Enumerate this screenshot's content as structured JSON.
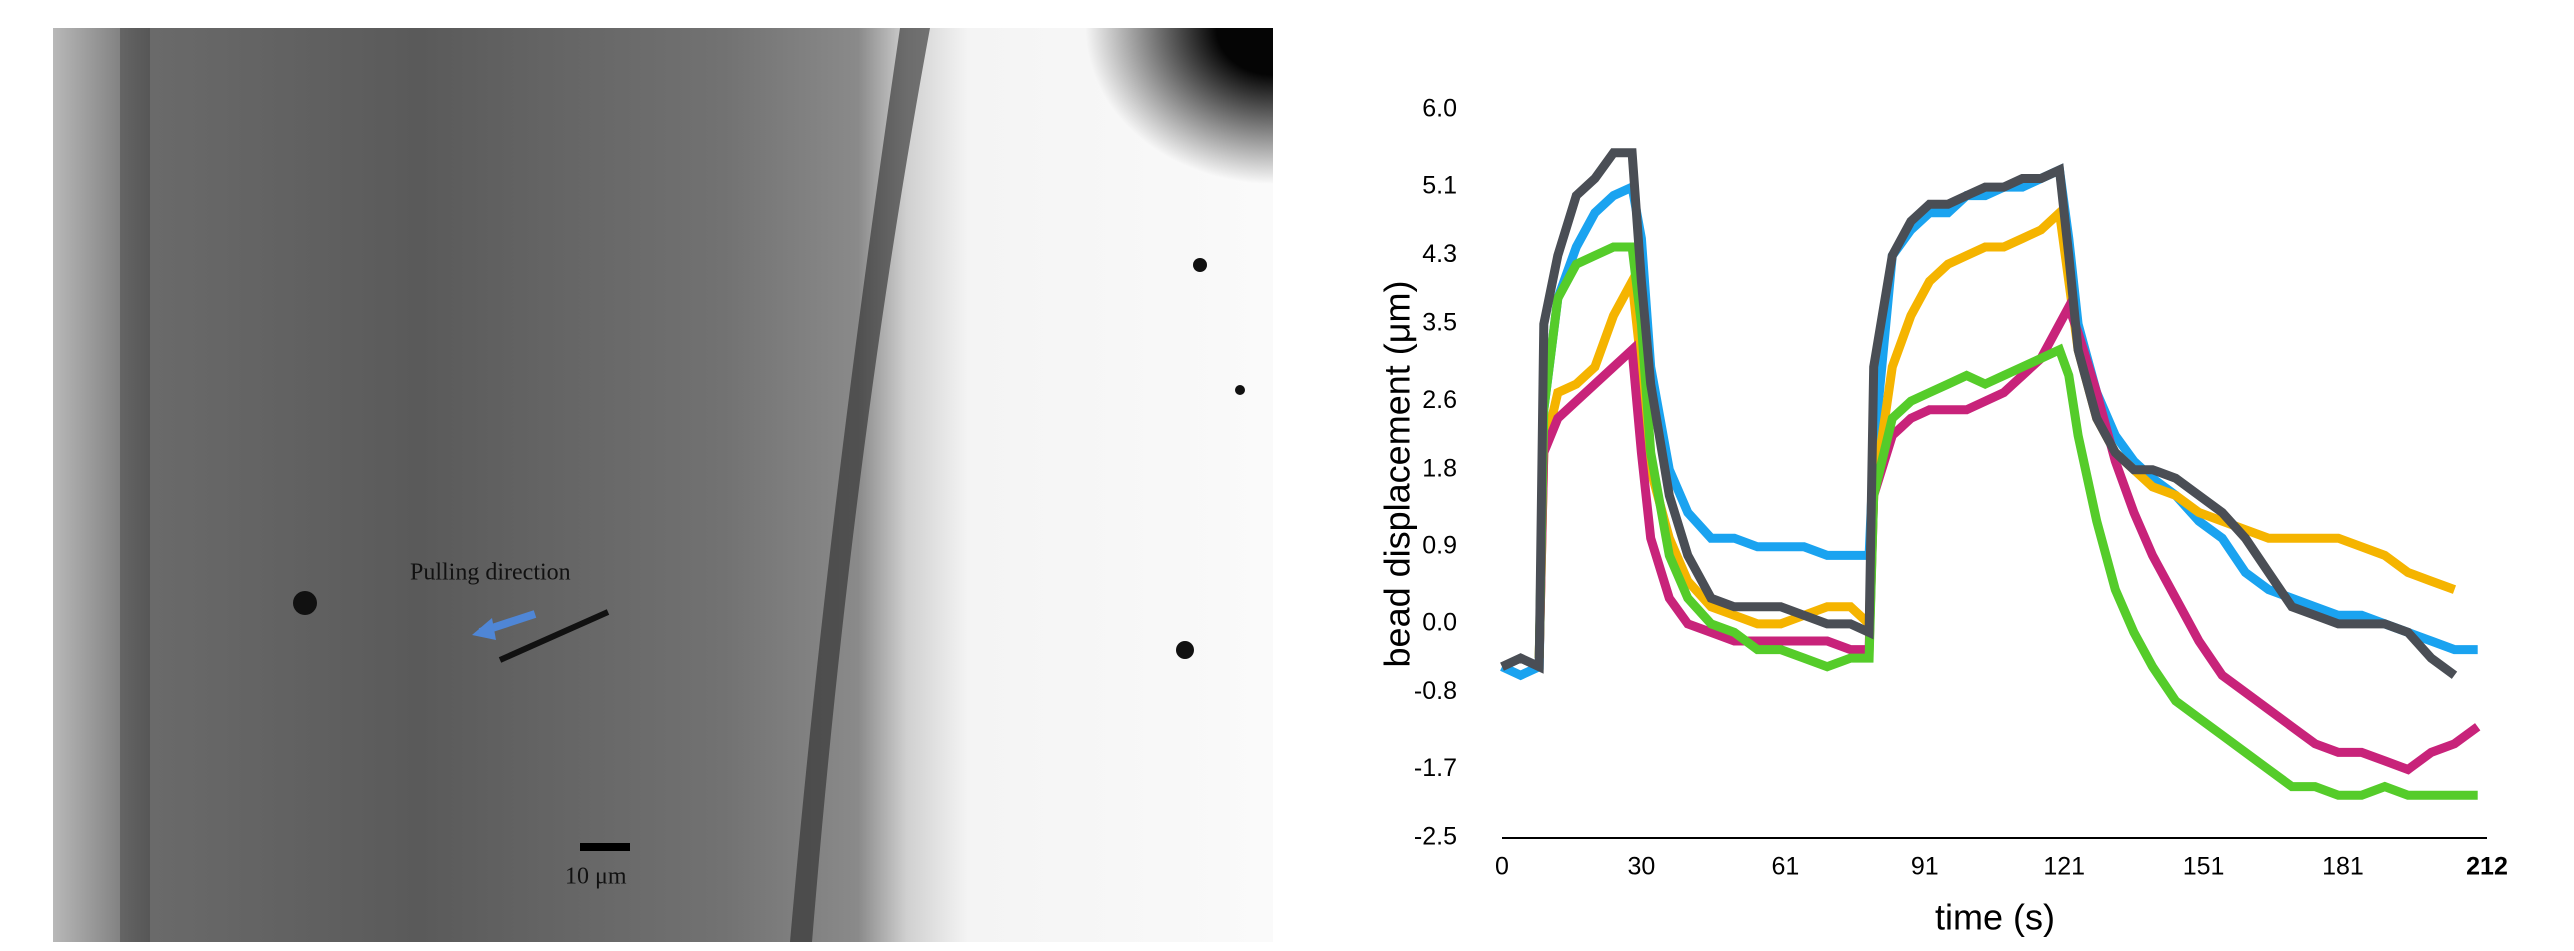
{
  "image": {
    "annotation": "Pulling direction",
    "scale_bar": "10 μm"
  },
  "chart_data": {
    "type": "line",
    "xlabel": "time (s)",
    "ylabel": "bead displacement (μm)",
    "xlim": [
      0,
      212
    ],
    "xticks": [
      0,
      30,
      61,
      91,
      121,
      151,
      181,
      212
    ],
    "ylim": [
      -2.5,
      6.0
    ],
    "yticks": [
      {
        "value": 6,
        "label": "6.0"
      },
      5.1,
      4.3,
      3.5,
      2.6,
      1.8,
      0.9,
      {
        "value": 0,
        "label": "0.0"
      },
      -0.8,
      -1.7,
      -2.5
    ],
    "x": [
      0,
      4,
      8,
      9,
      12,
      16,
      20,
      24,
      28,
      30,
      32,
      36,
      40,
      45,
      50,
      55,
      60,
      65,
      70,
      75,
      79,
      80,
      84,
      88,
      92,
      96,
      100,
      104,
      108,
      112,
      116,
      120,
      122,
      124,
      128,
      132,
      136,
      140,
      145,
      150,
      155,
      160,
      165,
      170,
      175,
      180,
      185,
      190,
      195,
      200,
      205,
      210
    ],
    "series": [
      {
        "color": "#1aa3f0",
        "values": [
          -0.5,
          -0.6,
          -0.5,
          2.5,
          3.8,
          4.4,
          4.8,
          5.0,
          5.1,
          4.5,
          3.0,
          1.8,
          1.3,
          1.0,
          1.0,
          0.9,
          0.9,
          0.9,
          0.8,
          0.8,
          0.8,
          2.0,
          4.3,
          4.6,
          4.8,
          4.8,
          5.0,
          5.0,
          5.1,
          5.1,
          5.2,
          5.3,
          4.5,
          3.5,
          2.7,
          2.2,
          1.9,
          1.7,
          1.5,
          1.2,
          1.0,
          0.6,
          0.4,
          0.3,
          0.2,
          0.1,
          0.1,
          0.0,
          -0.1,
          -0.2,
          -0.3,
          -0.3
        ]
      },
      {
        "color": "#f5b400",
        "values": [
          null,
          null,
          -0.4,
          2.0,
          2.7,
          2.8,
          3.0,
          3.6,
          4.0,
          3.0,
          1.8,
          1.0,
          0.5,
          0.2,
          0.1,
          0.0,
          0.0,
          0.1,
          0.2,
          0.2,
          0.0,
          1.5,
          3.0,
          3.6,
          4.0,
          4.2,
          4.3,
          4.4,
          4.4,
          4.5,
          4.6,
          4.8,
          4.0,
          3.2,
          2.4,
          2.0,
          1.8,
          1.6,
          1.5,
          1.3,
          1.2,
          1.1,
          1.0,
          1.0,
          1.0,
          1.0,
          0.9,
          0.8,
          0.6,
          0.5,
          0.4,
          null
        ]
      },
      {
        "color": "#c8237a",
        "values": [
          null,
          null,
          -0.4,
          2.0,
          2.4,
          2.6,
          2.8,
          3.0,
          3.2,
          2.0,
          1.0,
          0.3,
          0.0,
          -0.1,
          -0.2,
          -0.2,
          -0.2,
          -0.2,
          -0.2,
          -0.3,
          -0.3,
          1.5,
          2.2,
          2.4,
          2.5,
          2.5,
          2.5,
          2.6,
          2.7,
          2.9,
          3.1,
          3.5,
          3.7,
          3.4,
          2.7,
          1.9,
          1.3,
          0.8,
          0.3,
          -0.2,
          -0.6,
          -0.8,
          -1.0,
          -1.2,
          -1.4,
          -1.5,
          -1.5,
          -1.6,
          -1.7,
          -1.5,
          -1.4,
          -1.2
        ]
      },
      {
        "color": "#55cc2a",
        "values": [
          null,
          null,
          -0.4,
          2.5,
          3.8,
          4.2,
          4.3,
          4.4,
          4.4,
          3.5,
          2.0,
          0.8,
          0.3,
          0.0,
          -0.1,
          -0.3,
          -0.3,
          -0.4,
          -0.5,
          -0.4,
          -0.4,
          1.5,
          2.4,
          2.6,
          2.7,
          2.8,
          2.9,
          2.8,
          2.9,
          3.0,
          3.1,
          3.2,
          2.9,
          2.2,
          1.2,
          0.4,
          -0.1,
          -0.5,
          -0.9,
          -1.1,
          -1.3,
          -1.5,
          -1.7,
          -1.9,
          -1.9,
          -2.0,
          -2.0,
          -1.9,
          -2.0,
          -2.0,
          -2.0,
          -2.0
        ]
      },
      {
        "color": "#4a4e55",
        "values": [
          -0.5,
          -0.4,
          -0.5,
          3.5,
          4.3,
          5.0,
          5.2,
          5.5,
          5.5,
          4.0,
          2.8,
          1.5,
          0.8,
          0.3,
          0.2,
          0.2,
          0.2,
          0.1,
          0.0,
          0.0,
          -0.1,
          3.0,
          4.3,
          4.7,
          4.9,
          4.9,
          5.0,
          5.1,
          5.1,
          5.2,
          5.2,
          5.3,
          4.3,
          3.2,
          2.4,
          2.0,
          1.8,
          1.8,
          1.7,
          1.5,
          1.3,
          1.0,
          0.6,
          0.2,
          0.1,
          0.0,
          0.0,
          0.0,
          -0.1,
          -0.4,
          -0.6,
          null
        ]
      }
    ]
  }
}
